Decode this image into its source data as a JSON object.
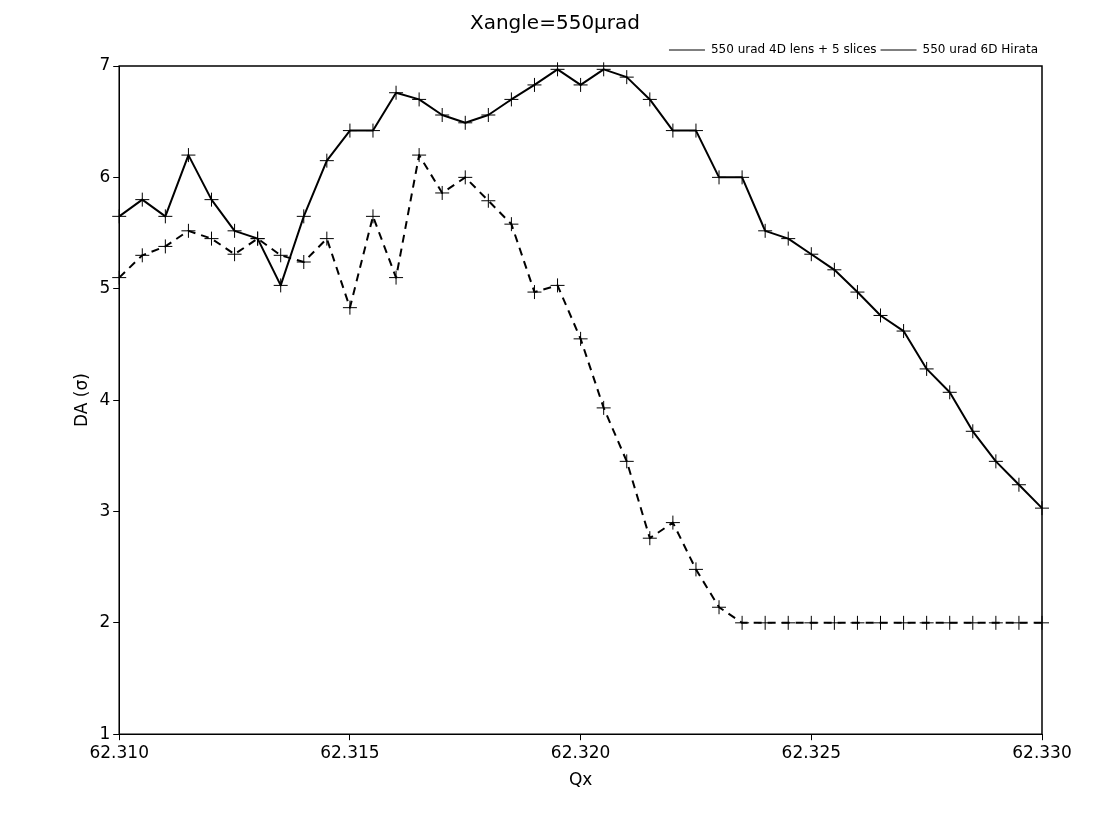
{
  "chart_data": {
    "type": "line",
    "title": "Xangle=550μrad",
    "xlabel": "Qx",
    "ylabel": "DA (σ)",
    "x": [
      62.31,
      62.3105,
      62.311,
      62.3115,
      62.312,
      62.3125,
      62.313,
      62.3135,
      62.314,
      62.3145,
      62.315,
      62.3155,
      62.316,
      62.3165,
      62.317,
      62.3175,
      62.318,
      62.3185,
      62.319,
      62.3195,
      62.32,
      62.3205,
      62.321,
      62.3215,
      62.322,
      62.3225,
      62.323,
      62.3235,
      62.324,
      62.3245,
      62.325,
      62.3255,
      62.326,
      62.3265,
      62.327,
      62.3275,
      62.328,
      62.3285,
      62.329,
      62.3295,
      62.33
    ],
    "series": [
      {
        "name": "550 urad 4D lens + 5 slices",
        "color": "#000000",
        "line_style": "solid",
        "values": [
          5.65,
          5.8,
          5.65,
          6.2,
          5.8,
          5.52,
          5.45,
          5.03,
          5.65,
          6.15,
          6.42,
          6.42,
          6.76,
          6.7,
          6.56,
          6.49,
          6.56,
          6.7,
          6.83,
          6.97,
          6.83,
          6.97,
          6.9,
          6.7,
          6.42,
          6.42,
          6.0,
          6.0,
          5.52,
          5.45,
          5.31,
          5.17,
          4.97,
          4.76,
          4.62,
          4.28,
          4.07,
          3.72,
          3.45,
          3.24,
          3.03
        ]
      },
      {
        "name": "550 urad 6D Hirata",
        "color": "#000000",
        "line_style": "dashed",
        "values": [
          5.1,
          5.3,
          5.38,
          5.52,
          5.45,
          5.31,
          5.45,
          5.3,
          5.24,
          5.45,
          4.83,
          5.65,
          5.1,
          6.2,
          5.86,
          6.0,
          5.79,
          5.58,
          4.97,
          5.03,
          4.55,
          3.93,
          3.45,
          2.76,
          2.9,
          2.48,
          2.14,
          2.0,
          2.0,
          2.0,
          2.0,
          2.0,
          2.0,
          2.0,
          2.0,
          2.0,
          2.0,
          2.0,
          2.0,
          2.0,
          2.0
        ]
      }
    ],
    "marker": "cross",
    "xlim": [
      62.31,
      62.33
    ],
    "xticks": [
      {
        "value": 62.31,
        "label": "62.310"
      },
      {
        "value": 62.315,
        "label": "62.315"
      },
      {
        "value": 62.32,
        "label": "62.320"
      },
      {
        "value": 62.325,
        "label": "62.325"
      },
      {
        "value": 62.33,
        "label": "62.330"
      }
    ],
    "ylim": [
      1,
      7
    ],
    "yticks": [
      1,
      2,
      3,
      4,
      5,
      6,
      7
    ],
    "grid": false,
    "legend": "top right"
  }
}
